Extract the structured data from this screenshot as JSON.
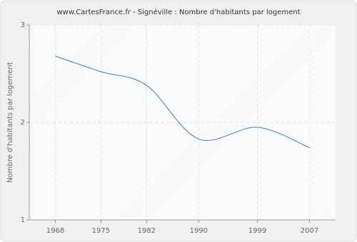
{
  "chart_data": {
    "type": "line",
    "title": "www.CartesFrance.fr - Signéville : Nombre d'habitants par logement",
    "y_label": "Nombre d'habitants par logement",
    "x": [
      1968,
      1975,
      1982,
      1990,
      1999,
      2007
    ],
    "series": [
      {
        "name": "Nombre d'habitants par logement",
        "color": "#4a78a8",
        "values": [
          2.68,
          2.52,
          2.38,
          1.83,
          1.95,
          1.74
        ]
      }
    ],
    "xlim": [
      1964,
      2011
    ],
    "xticks": [
      1968,
      1975,
      1982,
      1990,
      1999,
      2007
    ],
    "ylim": [
      1,
      3
    ],
    "yticks": [
      1,
      2,
      3
    ],
    "grid": true
  }
}
